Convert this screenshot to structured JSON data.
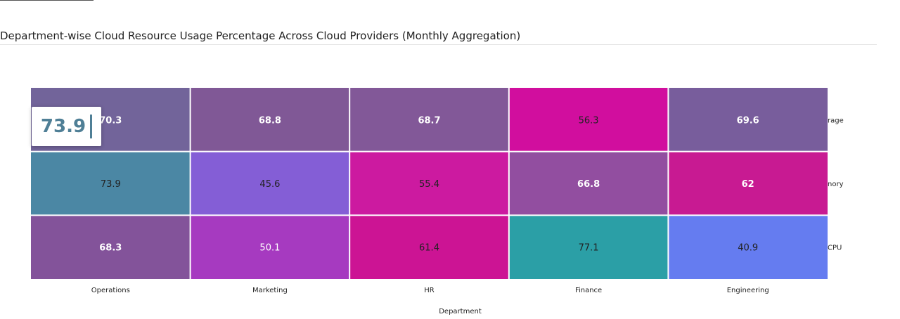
{
  "title": "Department-wise Cloud Resource Usage Percentage Across Cloud Providers (Monthly Aggregation)",
  "tooltip": {
    "value": "73.9"
  },
  "chart_data": {
    "type": "heatmap",
    "xlabel": "Department",
    "ylabel": "",
    "x_categories": [
      "Operations",
      "Marketing",
      "HR",
      "Finance",
      "Engineering"
    ],
    "y_categories": [
      "rage",
      "nory",
      "CPU"
    ],
    "values": [
      [
        70.3,
        68.8,
        68.7,
        56.3,
        69.6
      ],
      [
        73.9,
        45.6,
        55.4,
        66.8,
        62
      ],
      [
        68.3,
        50.1,
        61.4,
        77.1,
        40.9
      ]
    ],
    "cell_colors": [
      [
        "#72649a",
        "#805896",
        "#825898",
        "#d10e9e",
        "#785d9c"
      ],
      [
        "#4b87a4",
        "#845ed6",
        "#cc1aa0",
        "#924ea0",
        "#c81a92"
      ],
      [
        "#83539a",
        "#a63ac0",
        "#cc1494",
        "#2b9fa6",
        "#657cf0"
      ]
    ],
    "label_colors": [
      [
        "#ffffff",
        "#ffffff",
        "#ffffff",
        "#222222",
        "#ffffff"
      ],
      [
        "#222222",
        "#222222",
        "#222222",
        "#ffffff",
        "#ffffff"
      ],
      [
        "#ffffff",
        "#ffffff",
        "#222222",
        "#222222",
        "#222222"
      ]
    ],
    "label_weights": [
      [
        "bold",
        "bold",
        "bold",
        "normal",
        "bold"
      ],
      [
        "normal",
        "normal",
        "normal",
        "bold",
        "bold"
      ],
      [
        "bold",
        "normal",
        "normal",
        "normal",
        "normal"
      ]
    ],
    "grid": false,
    "legend": "none"
  }
}
